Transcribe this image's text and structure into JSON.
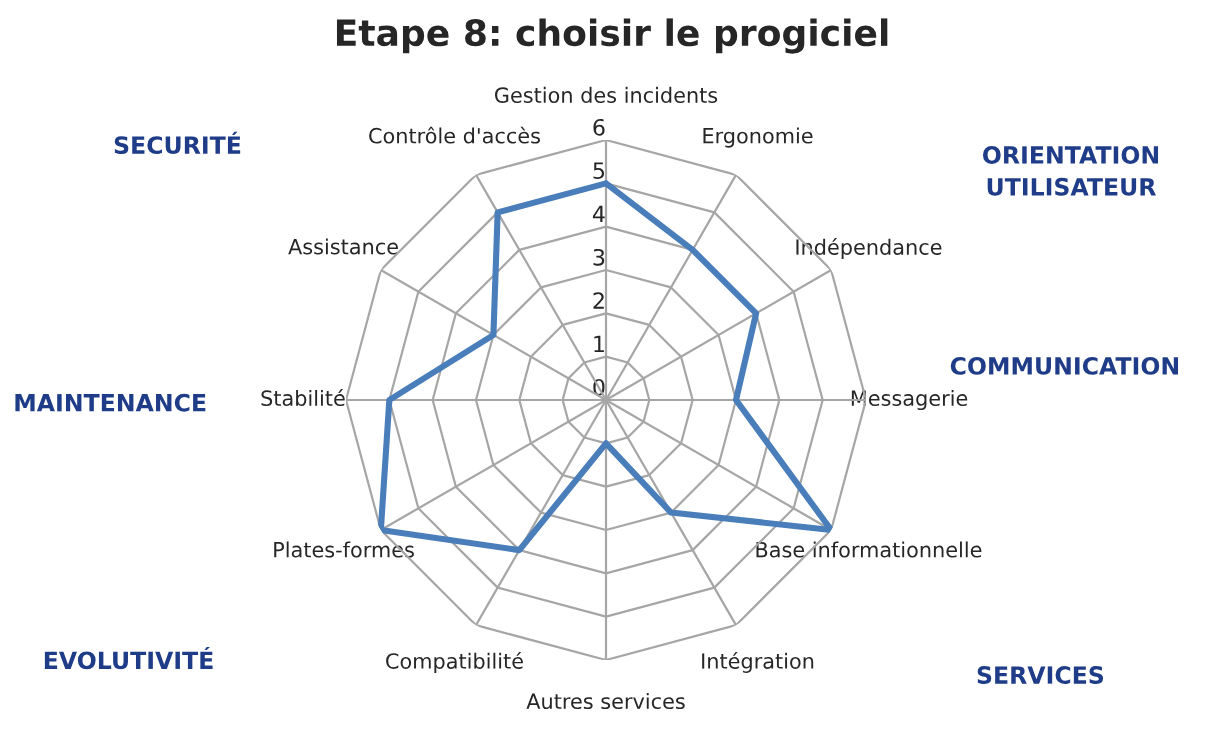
{
  "chart_data": {
    "type": "radar",
    "title": "Etape 8: choisir le progiciel",
    "categories": [
      "Gestion des incidents",
      "Ergonomie",
      "Indépendance",
      "Messagerie",
      "Base informationnelle",
      "Intégration",
      "Autres services",
      "Compatibilité",
      "Plates-formes",
      "Stabilité",
      "Assistance",
      "Contrôle d'accès"
    ],
    "series": [
      {
        "color": "#4a7ebb",
        "values": [
          5,
          4,
          4,
          3,
          6,
          3,
          1,
          4,
          6,
          5,
          3,
          5
        ]
      }
    ],
    "ylim": [
      0,
      6
    ],
    "yticks": [
      0,
      1,
      2,
      3,
      4,
      5,
      6
    ],
    "grid": true,
    "marker": "none",
    "line_style": "solid",
    "annotations": [
      "SECURITÉ",
      "ORIENTATION\nUTILISATEUR",
      "COMMUNICATION",
      "MAINTENANCE",
      "SERVICES",
      "EVOLUTIVITÉ"
    ]
  }
}
